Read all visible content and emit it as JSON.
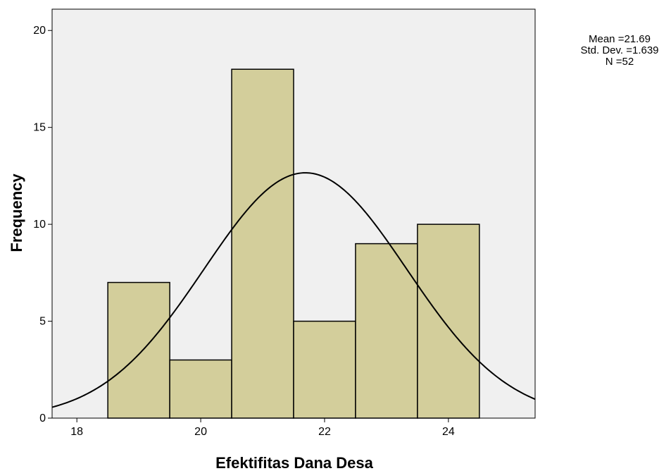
{
  "chart_data": {
    "type": "bar",
    "subtype": "histogram-with-normal-curve",
    "xlabel": "Efektifitas Dana Desa",
    "ylabel": "Frequency",
    "xlim": [
      17.6,
      25.4
    ],
    "ylim": [
      0,
      21.1
    ],
    "xticks": [
      18,
      20,
      22,
      24
    ],
    "yticks": [
      0,
      5,
      10,
      15,
      20
    ],
    "bins": [
      {
        "start": 18.5,
        "end": 19.5,
        "count": 7
      },
      {
        "start": 19.5,
        "end": 20.5,
        "count": 3
      },
      {
        "start": 20.5,
        "end": 21.5,
        "count": 18
      },
      {
        "start": 21.5,
        "end": 22.5,
        "count": 5
      },
      {
        "start": 22.5,
        "end": 23.5,
        "count": 9
      },
      {
        "start": 23.5,
        "end": 24.5,
        "count": 10
      }
    ],
    "normal_curve": {
      "mean": 21.69,
      "sd": 1.639,
      "n": 52,
      "bin_width": 1
    },
    "grid": false,
    "colors": {
      "plot_background": "#f0f0f0",
      "bar_fill": "#d3ce9b",
      "bar_stroke": "#000000",
      "curve": "#000000"
    },
    "stats_box": {
      "mean_label": "Mean =21.69",
      "sd_label": "Std. Dev. =1.639",
      "n_label": "N =52"
    }
  }
}
